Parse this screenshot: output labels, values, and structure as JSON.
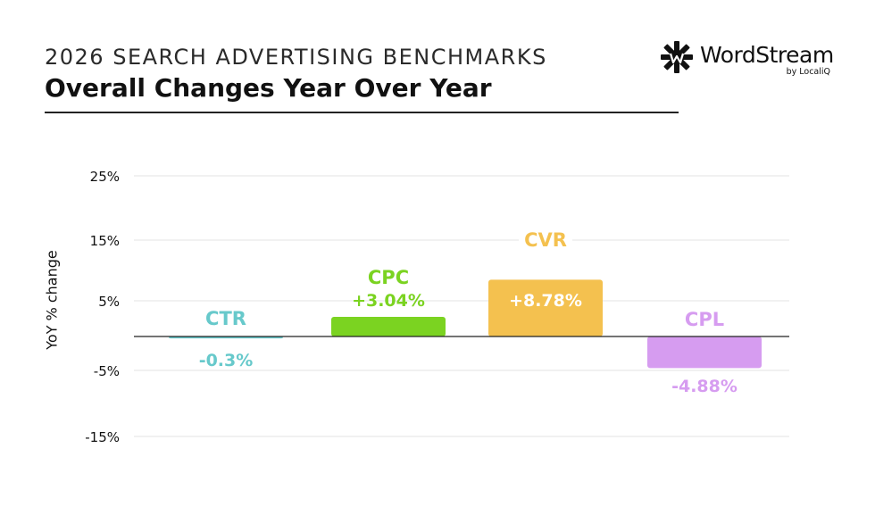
{
  "header": {
    "suptitle": "2026 SEARCH ADVERTISING BENCHMARKS",
    "title": "Overall Changes Year Over Year"
  },
  "logo": {
    "name": "WordStream",
    "sub": "by LocaliQ"
  },
  "chart_data": {
    "type": "bar",
    "categories": [
      "CTR",
      "CPC",
      "CVR",
      "CPL"
    ],
    "values": [
      -0.3,
      3.04,
      8.78,
      -4.88
    ],
    "value_labels": [
      "-0.3%",
      "+3.04%",
      "+8.78%",
      "-4.88%"
    ],
    "colors": [
      "#67c9cb",
      "#7bd321",
      "#f4c14f",
      "#d69cf0"
    ],
    "ylabel": "YoY % change",
    "yticks": [
      25,
      15,
      5,
      -5,
      -15
    ],
    "ytick_labels": [
      "25%",
      "15%",
      "5%",
      "-5%",
      "-15%"
    ],
    "grid": true
  }
}
